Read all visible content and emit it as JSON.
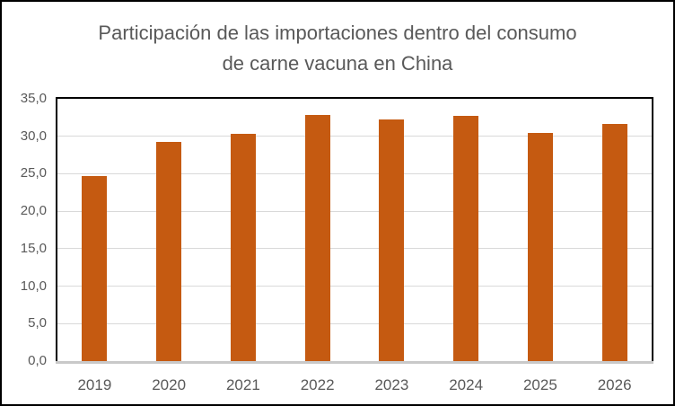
{
  "chart_data": {
    "type": "bar",
    "title": "Participación de las importaciones dentro del consumo de carne vacuna en China",
    "title_lines": [
      "Participación de las importaciones dentro del consumo",
      "de carne vacuna en China"
    ],
    "categories": [
      "2019",
      "2020",
      "2021",
      "2022",
      "2023",
      "2024",
      "2025",
      "2026"
    ],
    "values": [
      24.7,
      29.3,
      30.3,
      32.8,
      32.2,
      32.7,
      30.4,
      31.7
    ],
    "xlabel": "",
    "ylabel": "",
    "ylim": [
      0,
      35
    ],
    "ytick_step": 5,
    "ytick_labels": [
      "0,0",
      "5,0",
      "10,0",
      "15,0",
      "20,0",
      "25,0",
      "30,0",
      "35,0"
    ],
    "decimal_separator": ",",
    "grid": "horizontal",
    "legend": "none",
    "colors": {
      "bar": "#C55A11",
      "text": "#595959",
      "gridline": "#D9D9D9",
      "axis_line": "#C9C9C9",
      "plot_frame": "#000000"
    }
  }
}
